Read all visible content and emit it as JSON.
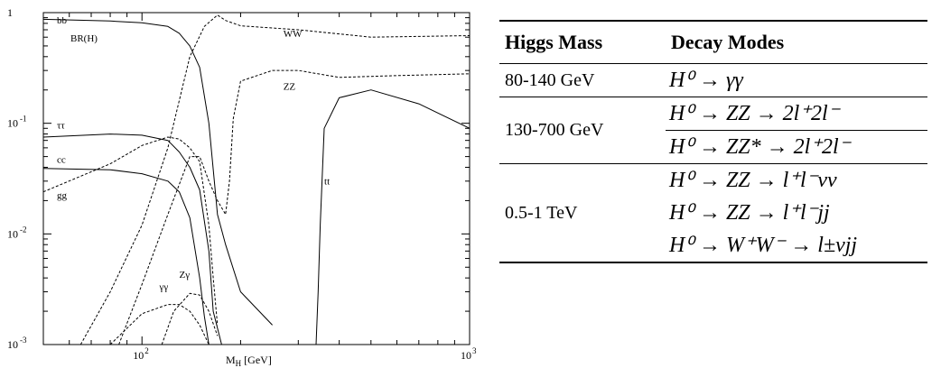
{
  "chart_data": {
    "type": "line",
    "xscale": "log",
    "yscale": "log",
    "xlim": [
      50,
      1000
    ],
    "ylim": [
      0.001,
      1
    ],
    "xlabel": "M_H [GeV]",
    "ylabel": "BR(H)",
    "x_ticks": [
      {
        "value": 100,
        "base": "10",
        "exp": "2"
      },
      {
        "value": 1000,
        "base": "10",
        "exp": "3"
      }
    ],
    "y_ticks": [
      {
        "value": 1,
        "base": "1",
        "exp": ""
      },
      {
        "value": 0.1,
        "base": "10",
        "exp": "-1"
      },
      {
        "value": 0.01,
        "base": "10",
        "exp": "-2"
      },
      {
        "value": 0.001,
        "base": "10",
        "exp": "-3"
      }
    ],
    "series": [
      {
        "name": "bb",
        "style": "solid",
        "label_at": [
          55,
          0.8
        ],
        "x": [
          50,
          80,
          100,
          120,
          130,
          140,
          150,
          160,
          170,
          180,
          200,
          250
        ],
        "y": [
          0.87,
          0.84,
          0.81,
          0.75,
          0.65,
          0.5,
          0.32,
          0.1,
          0.015,
          0.008,
          0.003,
          0.0015
        ]
      },
      {
        "name": "ττ",
        "style": "solid",
        "label_at": [
          55,
          0.09
        ],
        "x": [
          50,
          80,
          100,
          120,
          130,
          140,
          150,
          160,
          165,
          175
        ],
        "y": [
          0.075,
          0.08,
          0.078,
          0.07,
          0.055,
          0.04,
          0.025,
          0.007,
          0.002,
          0.001
        ]
      },
      {
        "name": "cc",
        "style": "solid",
        "label_at": [
          55,
          0.044
        ],
        "x": [
          50,
          80,
          100,
          120,
          130,
          140,
          150,
          155,
          160
        ],
        "y": [
          0.039,
          0.038,
          0.035,
          0.03,
          0.024,
          0.014,
          0.004,
          0.0018,
          0.001
        ]
      },
      {
        "name": "gg",
        "style": "dashed",
        "label_at": [
          55,
          0.021
        ],
        "x": [
          50,
          80,
          100,
          120,
          130,
          140,
          150,
          160,
          165,
          170
        ],
        "y": [
          0.024,
          0.043,
          0.063,
          0.075,
          0.072,
          0.06,
          0.045,
          0.012,
          0.004,
          0.0015
        ]
      },
      {
        "name": "WW",
        "style": "dashed",
        "label_at": [
          270,
          0.6
        ],
        "x": [
          65,
          80,
          100,
          120,
          140,
          155,
          170,
          180,
          200,
          300,
          500,
          1000
        ],
        "y": [
          0.001,
          0.003,
          0.012,
          0.06,
          0.4,
          0.75,
          0.95,
          0.85,
          0.76,
          0.7,
          0.6,
          0.62
        ]
      },
      {
        "name": "ZZ",
        "style": "dashed",
        "label_at": [
          270,
          0.2
        ],
        "x": [
          85,
          100,
          120,
          140,
          150,
          160,
          170,
          180,
          185,
          190,
          200,
          250,
          300,
          400,
          600,
          1000
        ],
        "y": [
          0.001,
          0.0035,
          0.015,
          0.05,
          0.05,
          0.03,
          0.02,
          0.015,
          0.03,
          0.11,
          0.24,
          0.3,
          0.3,
          0.26,
          0.27,
          0.28
        ]
      },
      {
        "name": "tt",
        "style": "solid",
        "label_at": [
          360,
          0.028
        ],
        "x": [
          340,
          345,
          350,
          360,
          400,
          500,
          700,
          1000
        ],
        "y": [
          0.001,
          0.003,
          0.012,
          0.09,
          0.17,
          0.2,
          0.15,
          0.09
        ]
      },
      {
        "name": "γγ",
        "style": "dashed",
        "label_at": [
          113,
          0.0031
        ],
        "x": [
          80,
          100,
          120,
          130,
          140,
          150,
          160
        ],
        "y": [
          0.001,
          0.0019,
          0.0023,
          0.0023,
          0.002,
          0.0015,
          0.001
        ]
      },
      {
        "name": "Zγ",
        "style": "dashed",
        "label_at": [
          130,
          0.004
        ],
        "x": [
          115,
          125,
          140,
          150,
          160,
          170
        ],
        "y": [
          0.001,
          0.002,
          0.0029,
          0.0028,
          0.002,
          0.0012
        ]
      }
    ]
  },
  "table": {
    "headers": [
      "Higgs Mass",
      "Decay Modes"
    ],
    "groups": [
      {
        "mass": "80-140 GeV",
        "modes": [
          "H⁰ → γγ"
        ]
      },
      {
        "mass": "130-700 GeV",
        "modes": [
          "H⁰ → ZZ → 2l⁺2l⁻",
          "H⁰ → ZZ* → 2l⁺2l⁻"
        ]
      },
      {
        "mass": "0.5-1 TeV",
        "modes": [
          "H⁰ → ZZ → l⁺l⁻νν",
          "H⁰ → ZZ → l⁺l⁻jj",
          "H⁰ → W⁺W⁻ → l±νjj"
        ]
      }
    ]
  }
}
